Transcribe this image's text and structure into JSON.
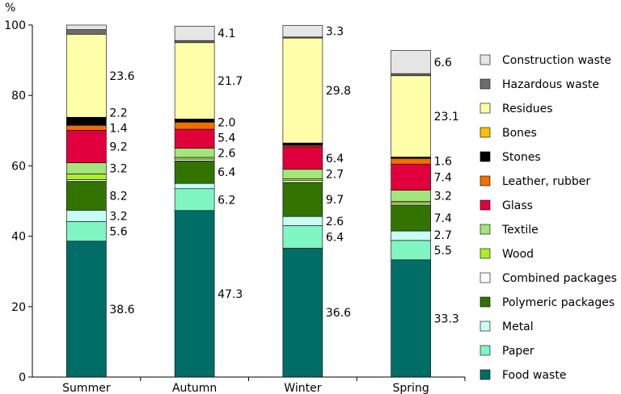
{
  "chart_data": {
    "type": "bar",
    "stacked": true,
    "ylabel": "%",
    "ylim": [
      0,
      100
    ],
    "yticks": [
      0,
      20,
      40,
      60,
      80,
      100
    ],
    "grid": false,
    "legend_position": "right",
    "categories": [
      "Summer",
      "Autumn",
      "Winter",
      "Spring"
    ],
    "series": [
      {
        "name": "Food waste",
        "color": "#006d66",
        "values": [
          38.6,
          47.3,
          36.6,
          33.3
        ]
      },
      {
        "name": "Paper",
        "color": "#7ff5c2",
        "values": [
          5.6,
          6.2,
          6.4,
          5.5
        ]
      },
      {
        "name": "Metal",
        "color": "#c6fdf6",
        "values": [
          3.2,
          1.5,
          2.6,
          2.7
        ]
      },
      {
        "name": "Polymeric packages",
        "color": "#337300",
        "values": [
          8.2,
          6.4,
          9.7,
          7.4
        ]
      },
      {
        "name": "Combined packages",
        "color": "#ffffff",
        "values": [
          0.5,
          0.5,
          0.5,
          0.5
        ]
      },
      {
        "name": "Wood",
        "color": "#aaef26",
        "values": [
          1.6,
          0.5,
          0.5,
          0.5
        ]
      },
      {
        "name": "Textile",
        "color": "#a3e57c",
        "values": [
          3.2,
          2.6,
          2.7,
          3.2
        ]
      },
      {
        "name": "Glass",
        "color": "#e2003c",
        "values": [
          9.2,
          5.4,
          6.4,
          7.4
        ]
      },
      {
        "name": "Leather, rubber",
        "color": "#f06f00",
        "values": [
          1.4,
          2.0,
          0.4,
          1.6
        ]
      },
      {
        "name": "Stones",
        "color": "#000000",
        "values": [
          2.2,
          0.8,
          0.6,
          0.3
        ]
      },
      {
        "name": "Bones",
        "color": "#f5c400",
        "values": [
          0.1,
          0.1,
          0.1,
          0.1
        ]
      },
      {
        "name": "Residues",
        "color": "#ffffaa",
        "values": [
          23.6,
          21.7,
          29.8,
          23.1
        ]
      },
      {
        "name": "Hazardous waste",
        "color": "#6d6d6d",
        "values": [
          1.3,
          0.6,
          0.3,
          0.6
        ]
      },
      {
        "name": "Construction waste",
        "color": "#e6e6e6",
        "values": [
          1.3,
          4.1,
          3.3,
          6.6
        ]
      }
    ],
    "data_labels": [
      [
        {
          "text": "38.6",
          "series": "Food waste"
        },
        {
          "text": "5.6",
          "series": "Paper"
        },
        {
          "text": "3.2",
          "series": "Metal"
        },
        {
          "text": "8.2",
          "series": "Polymeric packages"
        },
        {
          "text": "3.2",
          "series": "Textile"
        },
        {
          "text": "9.2",
          "series": "Glass"
        },
        {
          "text": "1.4",
          "series": "Leather, rubber"
        },
        {
          "text": "2.2",
          "series": "Stones"
        },
        {
          "text": "23.6",
          "series": "Residues"
        }
      ],
      [
        {
          "text": "47.3",
          "series": "Food waste"
        },
        {
          "text": "6.2",
          "series": "Paper"
        },
        {
          "text": "6.4",
          "series": "Polymeric packages"
        },
        {
          "text": "2.6",
          "series": "Textile"
        },
        {
          "text": "5.4",
          "series": "Glass"
        },
        {
          "text": "2.0",
          "series": "Leather, rubber"
        },
        {
          "text": "21.7",
          "series": "Residues"
        },
        {
          "text": "4.1",
          "series": "Construction waste"
        }
      ],
      [
        {
          "text": "36.6",
          "series": "Food waste"
        },
        {
          "text": "6.4",
          "series": "Paper"
        },
        {
          "text": "2.6",
          "series": "Metal"
        },
        {
          "text": "9.7",
          "series": "Polymeric packages"
        },
        {
          "text": "2.7",
          "series": "Textile"
        },
        {
          "text": "6.4",
          "series": "Glass"
        },
        {
          "text": "29.8",
          "series": "Residues"
        },
        {
          "text": "3.3",
          "series": "Construction waste"
        }
      ],
      [
        {
          "text": "33.3",
          "series": "Food waste"
        },
        {
          "text": "5.5",
          "series": "Paper"
        },
        {
          "text": "2.7",
          "series": "Metal"
        },
        {
          "text": "7.4",
          "series": "Polymeric packages"
        },
        {
          "text": "3.2",
          "series": "Textile"
        },
        {
          "text": "7.4",
          "series": "Glass"
        },
        {
          "text": "1.6",
          "series": "Leather, rubber"
        },
        {
          "text": "23.1",
          "series": "Residues"
        },
        {
          "text": "6.6",
          "series": "Construction waste"
        }
      ]
    ]
  }
}
